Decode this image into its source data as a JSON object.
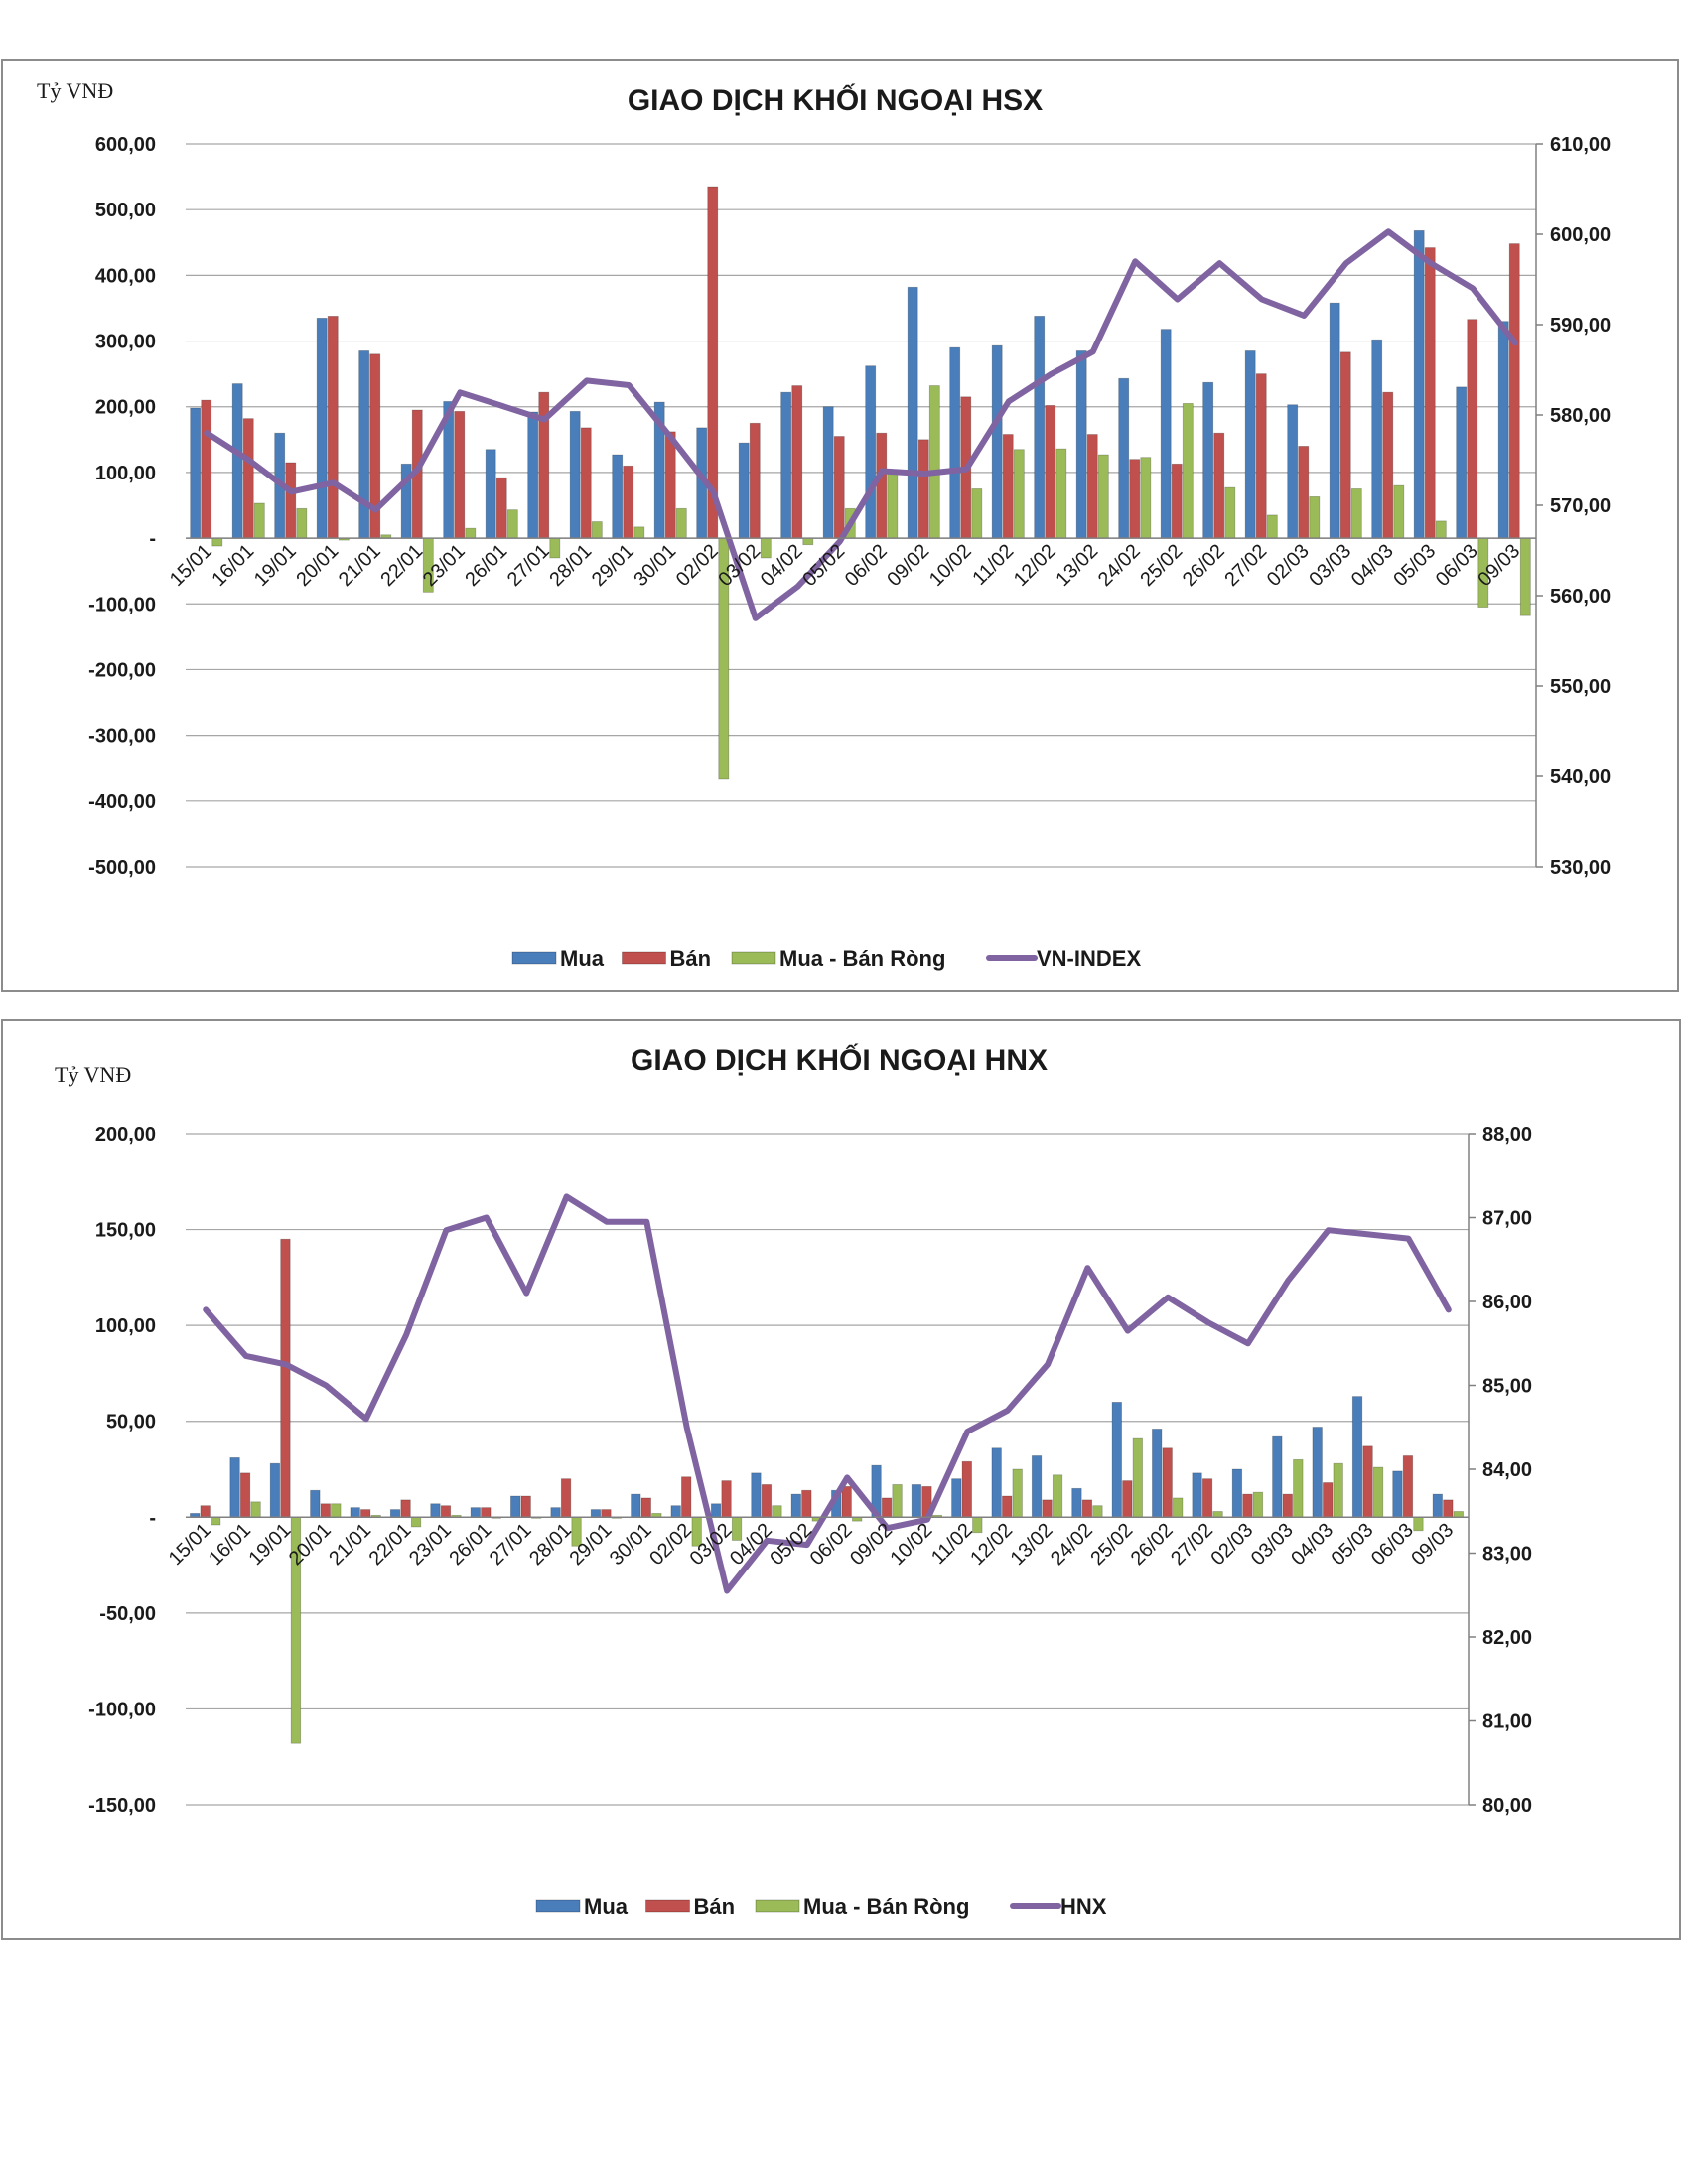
{
  "chart_data": [
    {
      "type": "bar",
      "title": "GIAO DỊCH KHỐI NGOẠI HSX",
      "unit_label": "Tỷ VNĐ",
      "categories": [
        "15/01",
        "16/01",
        "19/01",
        "20/01",
        "21/01",
        "22/01",
        "23/01",
        "26/01",
        "27/01",
        "28/01",
        "29/01",
        "30/01",
        "02/02",
        "03/02",
        "04/02",
        "05/02",
        "06/02",
        "09/02",
        "10/02",
        "11/02",
        "12/02",
        "13/02",
        "24/02",
        "25/02",
        "26/02",
        "27/02",
        "02/03",
        "03/03",
        "04/03",
        "05/03",
        "06/03",
        "09/03"
      ],
      "y_ticks": [
        "600,00",
        "500,00",
        "400,00",
        "300,00",
        "200,00",
        "100,00",
        "-",
        "-100,00",
        "-200,00",
        "-300,00",
        "-400,00",
        "-500,00"
      ],
      "y2_ticks": [
        "610,00",
        "600,00",
        "590,00",
        "580,00",
        "570,00",
        "560,00",
        "550,00",
        "540,00",
        "530,00"
      ],
      "ylim": [
        -500,
        600
      ],
      "y2lim": [
        530,
        610
      ],
      "legend_position": "bottom",
      "grid": true,
      "series": [
        {
          "name": "Mua",
          "color": "#4a7ebb",
          "values": [
            198,
            235,
            160,
            335,
            285,
            113,
            208,
            135,
            192,
            193,
            127,
            207,
            168,
            145,
            222,
            200,
            262,
            382,
            290,
            293,
            338,
            285,
            243,
            318,
            237,
            285,
            203,
            358,
            302,
            468,
            230,
            330
          ]
        },
        {
          "name": "Bán",
          "color": "#c0504d",
          "values": [
            210,
            182,
            115,
            338,
            280,
            195,
            193,
            92,
            222,
            168,
            110,
            162,
            535,
            175,
            232,
            155,
            160,
            150,
            215,
            158,
            202,
            158,
            120,
            113,
            160,
            250,
            140,
            283,
            222,
            442,
            333,
            448
          ]
        },
        {
          "name": "Mua - Bán Ròng",
          "color": "#9bbb59",
          "values": [
            -12,
            53,
            45,
            -3,
            5,
            -82,
            15,
            43,
            -30,
            25,
            17,
            45,
            -367,
            -30,
            -10,
            45,
            102,
            232,
            75,
            135,
            136,
            127,
            123,
            205,
            77,
            35,
            63,
            75,
            80,
            26,
            -105,
            -118
          ]
        },
        {
          "name": "VN-INDEX",
          "color": "#8064a2",
          "axis": "right",
          "values": [
            578,
            575,
            571.5,
            572.5,
            569.5,
            574,
            582.5,
            581,
            579.5,
            583.8,
            583.3,
            577.5,
            571.5,
            557.5,
            561,
            566,
            573.8,
            573.5,
            574,
            581.5,
            584.5,
            587,
            597,
            592.8,
            596.8,
            592.8,
            591,
            596.8,
            600.3,
            596.8,
            594,
            588
          ]
        }
      ]
    },
    {
      "type": "bar",
      "title": "GIAO DỊCH KHỐI NGOẠI HNX",
      "unit_label": "Tỷ VNĐ",
      "categories": [
        "15/01",
        "16/01",
        "19/01",
        "20/01",
        "21/01",
        "22/01",
        "23/01",
        "26/01",
        "27/01",
        "28/01",
        "29/01",
        "30/01",
        "02/02",
        "03/02",
        "04/02",
        "05/02",
        "06/02",
        "09/02",
        "10/02",
        "11/02",
        "12/02",
        "13/02",
        "24/02",
        "25/02",
        "26/02",
        "27/02",
        "02/03",
        "03/03",
        "04/03",
        "05/03",
        "06/03",
        "09/03"
      ],
      "y_ticks": [
        "200,00",
        "150,00",
        "100,00",
        "50,00",
        "-",
        "-50,00",
        "-100,00",
        "-150,00"
      ],
      "y2_ticks": [
        "88,00",
        "87,00",
        "86,00",
        "85,00",
        "84,00",
        "83,00",
        "82,00",
        "81,00",
        "80,00"
      ],
      "ylim": [
        -150,
        200
      ],
      "y2lim": [
        80,
        88
      ],
      "legend_position": "bottom",
      "grid": true,
      "series": [
        {
          "name": "Mua",
          "color": "#4a7ebb",
          "values": [
            2,
            31,
            28,
            14,
            5,
            4,
            7,
            5,
            11,
            5,
            4,
            12,
            6,
            7,
            23,
            12,
            14,
            27,
            17,
            20,
            36,
            32,
            15,
            60,
            46,
            23,
            25,
            42,
            47,
            63,
            24,
            12
          ]
        },
        {
          "name": "Bán",
          "color": "#c0504d",
          "values": [
            6,
            23,
            145,
            7,
            4,
            9,
            6,
            5,
            11,
            20,
            4,
            10,
            21,
            19,
            17,
            14,
            16,
            10,
            16,
            29,
            11,
            9,
            9,
            19,
            36,
            20,
            12,
            12,
            18,
            37,
            32,
            9
          ]
        },
        {
          "name": "Mua - Bán Ròng",
          "color": "#9bbb59",
          "values": [
            -4,
            8,
            -118,
            7,
            1,
            -5,
            1,
            0,
            0,
            -15,
            0,
            2,
            -15,
            -12,
            6,
            -2,
            -2,
            17,
            1,
            -8,
            25,
            22,
            6,
            41,
            10,
            3,
            13,
            30,
            28,
            26,
            -7,
            3
          ]
        },
        {
          "name": "HNX",
          "color": "#8064a2",
          "axis": "right",
          "values": [
            85.9,
            85.35,
            85.25,
            85,
            84.6,
            85.6,
            86.85,
            87,
            86.1,
            87.25,
            86.95,
            86.95,
            84.5,
            82.55,
            83.15,
            83.1,
            83.9,
            83.3,
            83.4,
            84.45,
            84.7,
            85.25,
            86.4,
            85.65,
            86.05,
            85.75,
            85.5,
            86.25,
            86.85,
            86.8,
            86.75,
            85.9
          ]
        }
      ]
    }
  ]
}
